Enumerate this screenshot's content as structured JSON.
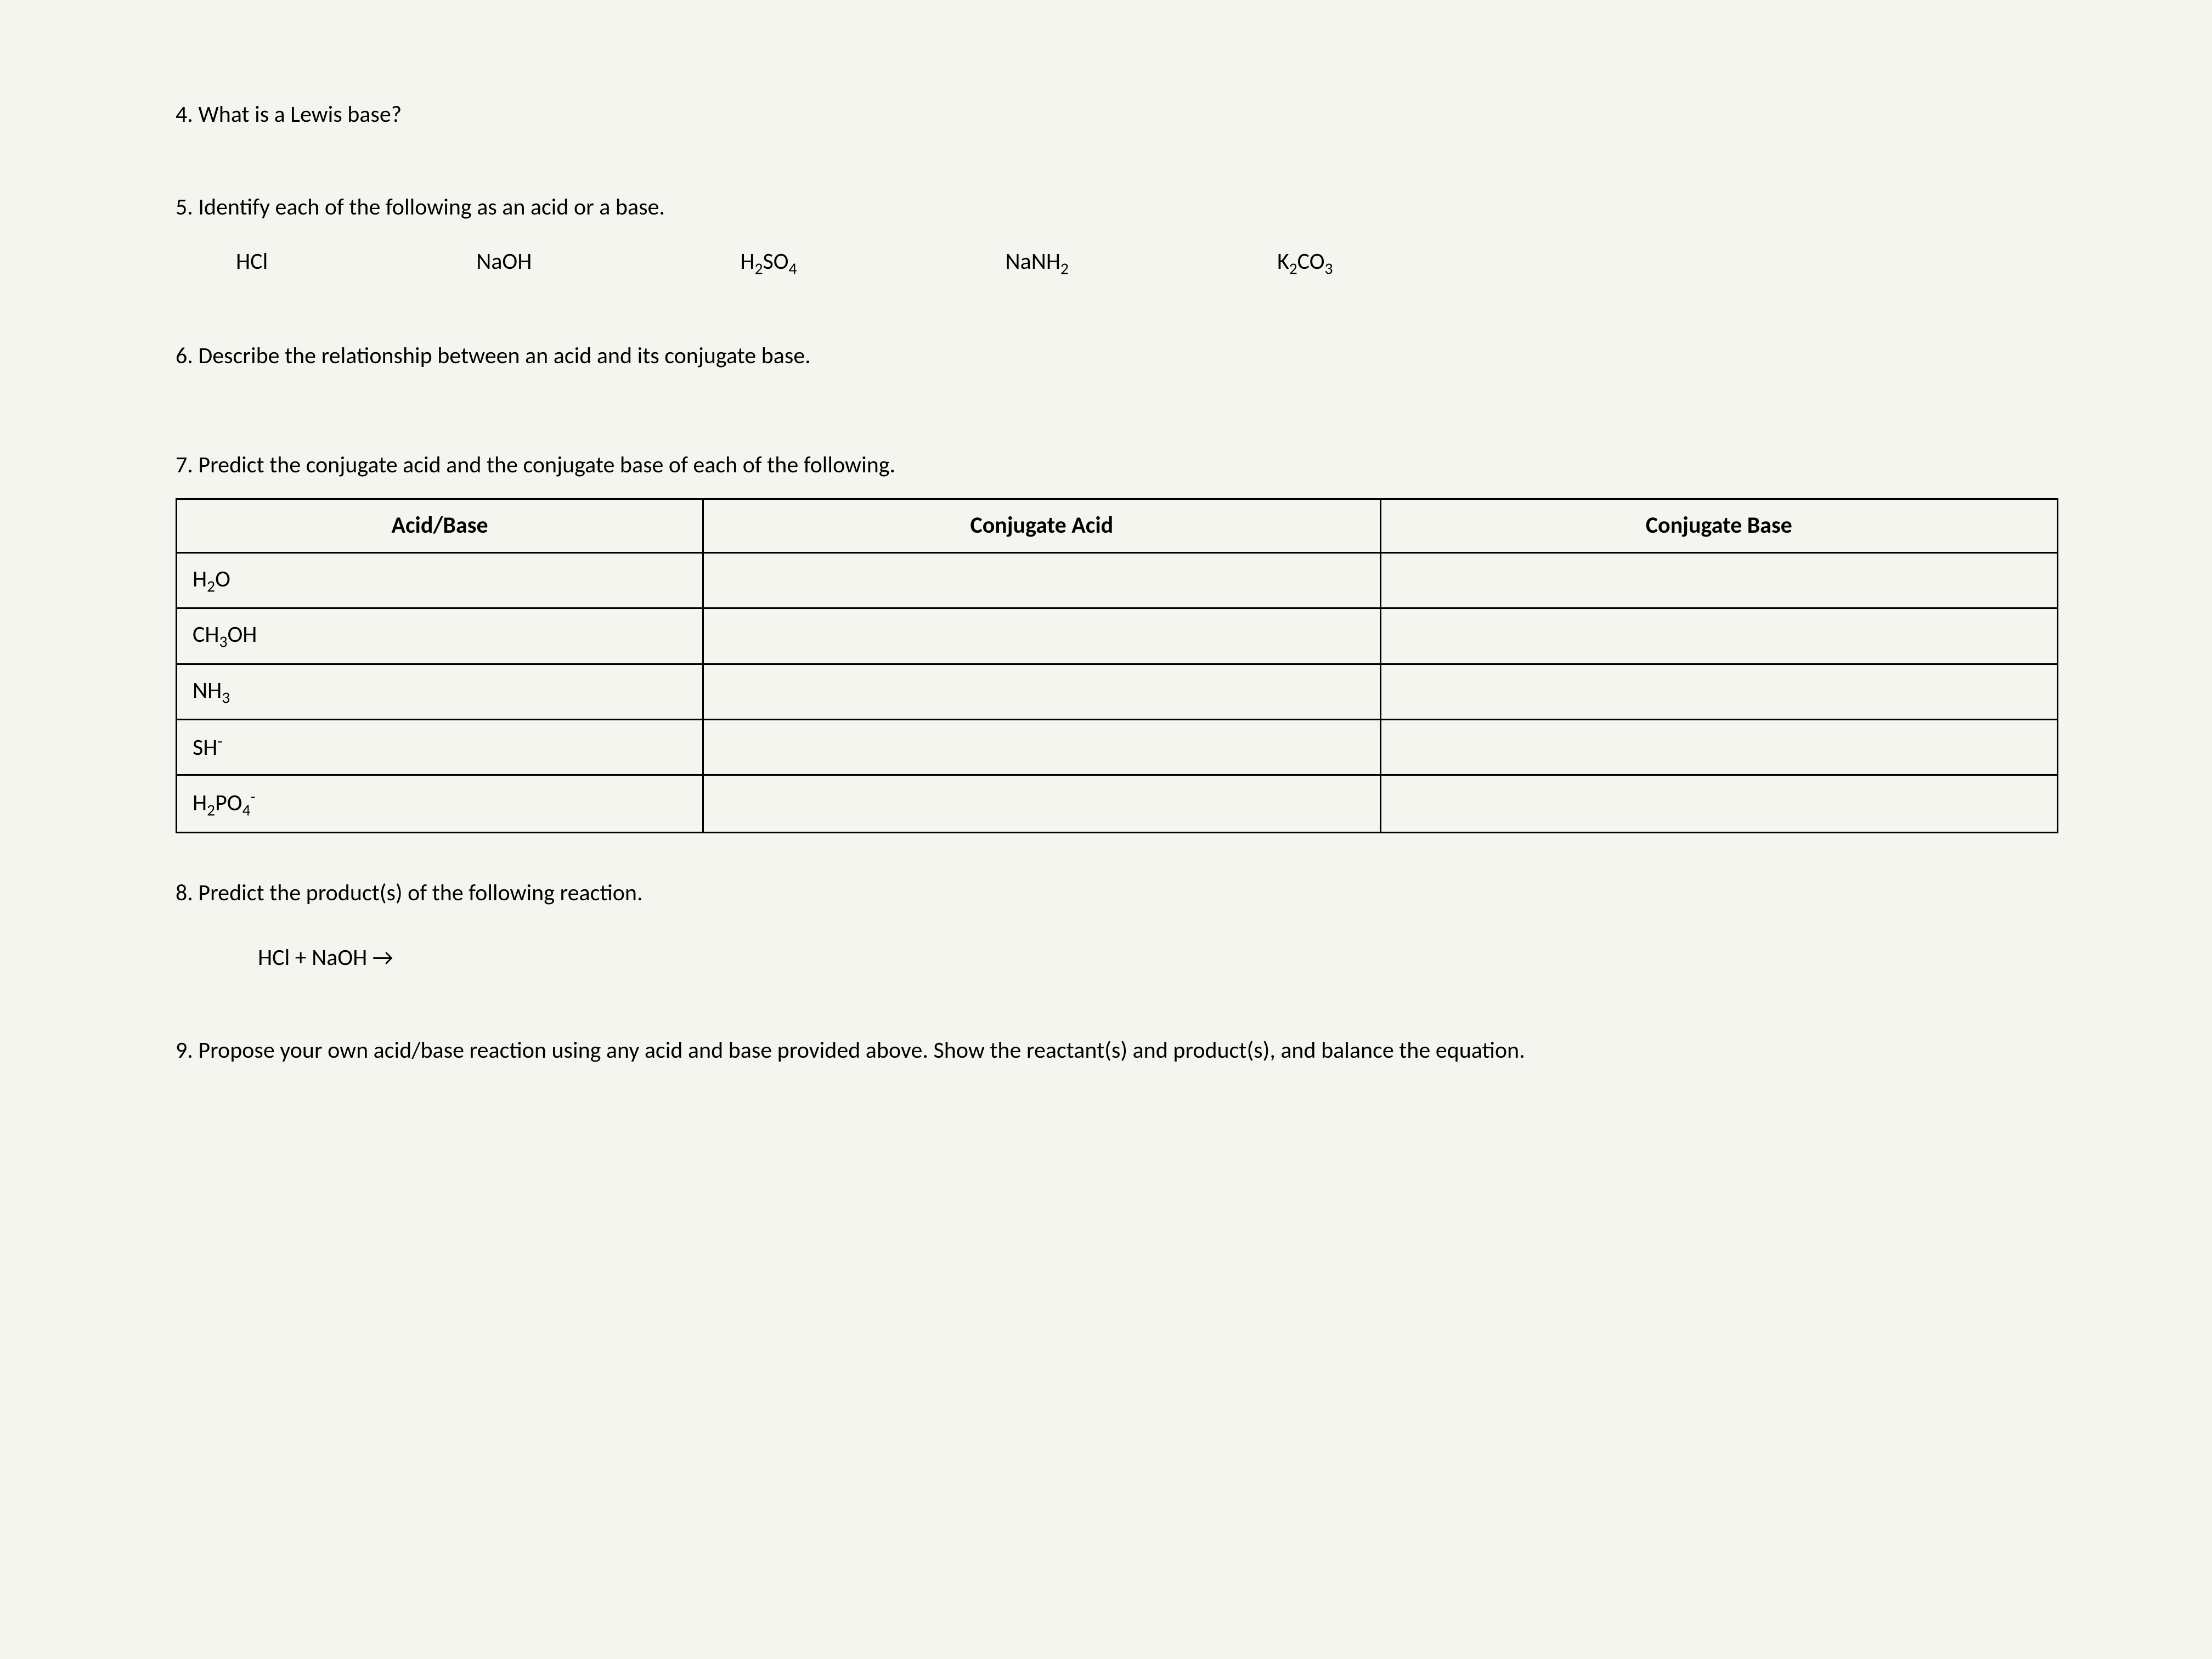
{
  "q4": {
    "text": "4. What is a Lewis base?"
  },
  "q5": {
    "text": "5. Identify each of the following as an acid or a base.",
    "compounds": [
      "HCl",
      "NaOH",
      "H₂SO₄",
      "NaNH₂",
      "K₂CO₃"
    ]
  },
  "q6": {
    "text": "6. Describe the relationship between an acid and its conjugate base."
  },
  "q7": {
    "text": "7. Predict the conjugate acid and the conjugate base of each of the following.",
    "headers": [
      "Acid/Base",
      "Conjugate Acid",
      "Conjugate Base"
    ],
    "rows": [
      "H₂O",
      "CH₃OH",
      "NH₃",
      "SH⁻",
      "H₂PO₄⁻"
    ]
  },
  "q8": {
    "text": "8. Predict the product(s) of the following reaction.",
    "reaction": "HCl  +  NaOH  →"
  },
  "q9": {
    "text": "9. Propose your own acid/base reaction using any acid and base provided above. Show the reactant(s) and product(s), and balance the equation."
  },
  "colors": {
    "page_bg": "#f5f5f0",
    "text": "#000000",
    "border": "#000000"
  },
  "typography": {
    "base_fontsize": 42,
    "font_family": "Calibri"
  }
}
